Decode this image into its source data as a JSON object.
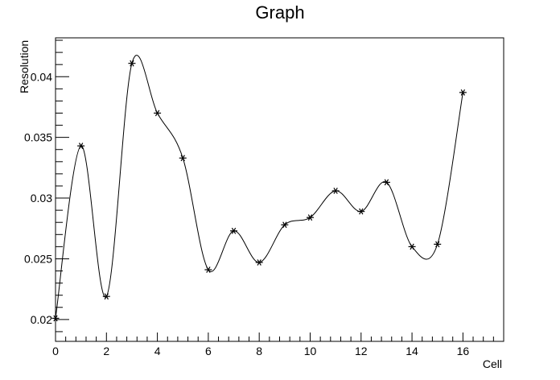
{
  "chart_data": {
    "type": "line",
    "title": "Graph",
    "xlabel": "Cell",
    "ylabel": "Resolution",
    "xlim": [
      0,
      17.6
    ],
    "ylim": [
      0.0182,
      0.0432
    ],
    "x_ticks": [
      0,
      2,
      4,
      6,
      8,
      10,
      12,
      14,
      16
    ],
    "x_tick_labels": [
      "0",
      "2",
      "4",
      "6",
      "8",
      "10",
      "12",
      "14",
      "16"
    ],
    "y_ticks": [
      0.02,
      0.025,
      0.03,
      0.035,
      0.04
    ],
    "y_tick_labels": [
      "0.02",
      "0.025",
      "0.03",
      "0.035",
      "0.04"
    ],
    "grid": false,
    "marker": "asterisk",
    "series": [
      {
        "x": [
          0,
          1,
          2,
          3,
          4,
          5,
          6,
          7,
          8,
          9,
          10,
          11,
          12,
          13,
          14,
          15,
          16
        ],
        "y": [
          0.0201,
          0.0343,
          0.0219,
          0.0411,
          0.037,
          0.0333,
          0.0241,
          0.0273,
          0.0247,
          0.0278,
          0.0284,
          0.0306,
          0.0289,
          0.0313,
          0.026,
          0.0262,
          0.0387
        ]
      }
    ]
  }
}
